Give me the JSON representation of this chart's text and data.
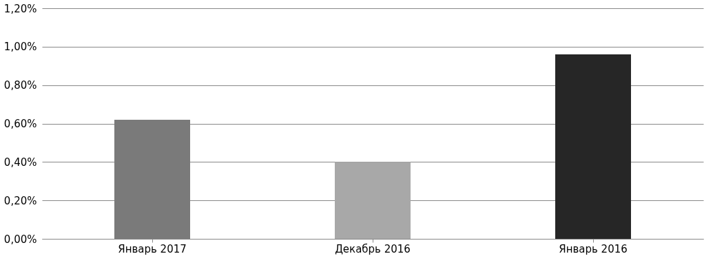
{
  "chart_data": {
    "type": "bar",
    "categories": [
      "Январь 2017",
      "Декабрь 2016",
      "Январь 2016"
    ],
    "values": [
      0.62,
      0.4,
      0.96
    ],
    "colors": [
      "#7a7a7a",
      "#a8a8a8",
      "#262626"
    ],
    "ylim": [
      0,
      1.2
    ],
    "yticks": [
      {
        "value": 0,
        "label": "0,00%"
      },
      {
        "value": 0.2,
        "label": "0,20%"
      },
      {
        "value": 0.4,
        "label": "0,40%"
      },
      {
        "value": 0.6,
        "label": "0,60%"
      },
      {
        "value": 0.8,
        "label": "0,80%"
      },
      {
        "value": 1.0,
        "label": "1,00%"
      },
      {
        "value": 1.2,
        "label": "1,20%"
      }
    ],
    "grid": "y"
  }
}
